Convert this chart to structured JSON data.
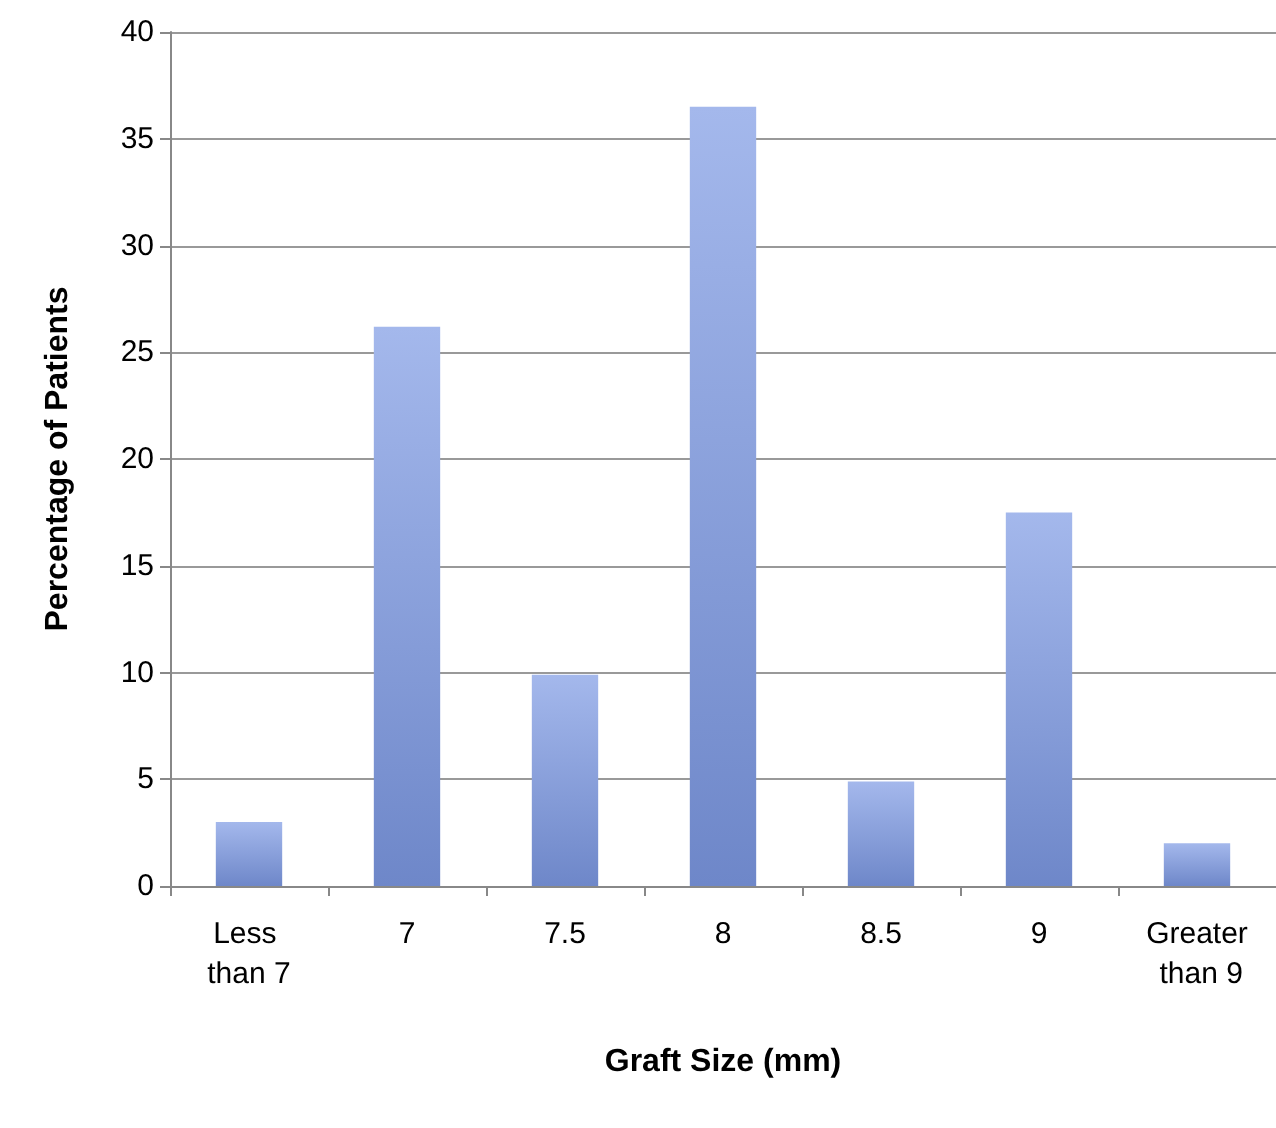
{
  "chart_data": {
    "type": "bar",
    "xlabel": "Graft Size (mm)",
    "ylabel": "Percentage of Patients",
    "categories": [
      "Less than 7",
      "7",
      "7.5",
      "8",
      "8.5",
      "9",
      "Greater than 9"
    ],
    "values": [
      3,
      26.2,
      9.9,
      36.5,
      4.9,
      17.5,
      2
    ],
    "color": "#7d99e4",
    "ylim": [
      0,
      40
    ],
    "yticks": [
      0,
      5,
      10,
      15,
      20,
      25,
      30,
      35,
      40
    ],
    "grid": "y"
  }
}
